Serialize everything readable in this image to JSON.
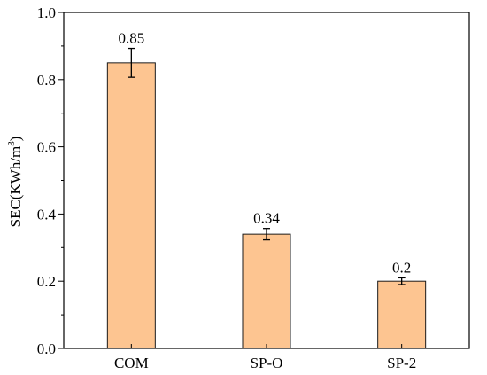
{
  "chart_data": {
    "type": "bar",
    "title": "",
    "xlabel": "",
    "ylabel": "SEC(KWh/m³)",
    "categories": [
      "COM",
      "SP-O",
      "SP-2"
    ],
    "values": [
      0.85,
      0.34,
      0.2
    ],
    "errors": [
      0.043,
      0.017,
      0.01
    ],
    "data_labels": [
      "0.85",
      "0.34",
      "0.2"
    ],
    "ylim": [
      0,
      1.0
    ],
    "yticks": [
      0.0,
      0.2,
      0.4,
      0.6,
      0.8,
      1.0
    ],
    "ytick_labels": [
      "0.0",
      "0.2",
      "0.4",
      "0.6",
      "0.8",
      "1.0"
    ],
    "grid": false,
    "legend": "none",
    "colors": {
      "bar_fill": "#FDC591",
      "bar_stroke": "#1a1a1a",
      "axis": "#000000"
    }
  }
}
